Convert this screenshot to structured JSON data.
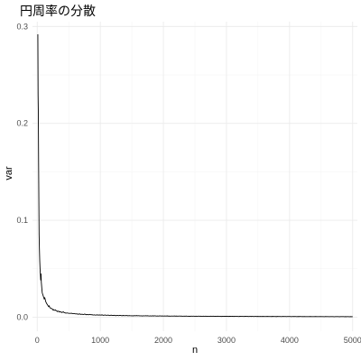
{
  "chart_data": {
    "type": "line",
    "title": "円周率の分散",
    "xlabel": "n",
    "ylabel": "var",
    "xlim": [
      -75,
      5075
    ],
    "ylim": [
      -0.0145,
      0.305
    ],
    "x_ticks": [
      0,
      1000,
      2000,
      3000,
      4000,
      5000
    ],
    "x_tick_labels": [
      "0",
      "1000",
      "2000",
      "3000",
      "4000",
      "5000"
    ],
    "y_ticks": [
      0.0,
      0.1,
      0.2,
      0.3
    ],
    "y_tick_labels": [
      "0.0",
      "0.1",
      "0.2",
      "0.3"
    ],
    "line_color": "#000000",
    "grid_color": "#ebebeb",
    "series": [
      {
        "name": "var",
        "x": [
          10,
          14,
          18,
          22,
          26,
          30,
          35,
          40,
          45,
          50,
          55,
          60,
          65,
          70,
          75,
          80,
          90,
          100,
          110,
          120,
          135,
          150,
          165,
          180,
          200,
          220,
          240,
          260,
          280,
          300,
          330,
          360,
          400,
          440,
          480,
          520,
          570,
          620,
          680,
          740,
          800,
          870,
          940,
          1000,
          1100,
          1200,
          1300,
          1400,
          1500,
          1650,
          1800,
          2000,
          2200,
          2400,
          2600,
          2800,
          3000,
          3250,
          3500,
          3750,
          4000,
          4250,
          4500,
          4750,
          5000
        ],
        "y": [
          0.292,
          0.23,
          0.21,
          0.16,
          0.12,
          0.085,
          0.07,
          0.058,
          0.05,
          0.044,
          0.038,
          0.045,
          0.036,
          0.032,
          0.028,
          0.025,
          0.023,
          0.021,
          0.019,
          0.02,
          0.016,
          0.014,
          0.0125,
          0.011,
          0.0098,
          0.009,
          0.0085,
          0.0078,
          0.0072,
          0.0066,
          0.0061,
          0.0056,
          0.0051,
          0.0046,
          0.0043,
          0.004,
          0.0037,
          0.0034,
          0.0031,
          0.0029,
          0.0027,
          0.0025,
          0.0023,
          0.0022,
          0.002,
          0.0018,
          0.0017,
          0.0016,
          0.0015,
          0.0014,
          0.0013,
          0.0012,
          0.0011,
          0.001,
          0.00095,
          0.0009,
          0.00085,
          0.0008,
          0.00075,
          0.0007,
          0.00066,
          0.00062,
          0.00058,
          0.00055,
          0.00052
        ]
      }
    ]
  }
}
